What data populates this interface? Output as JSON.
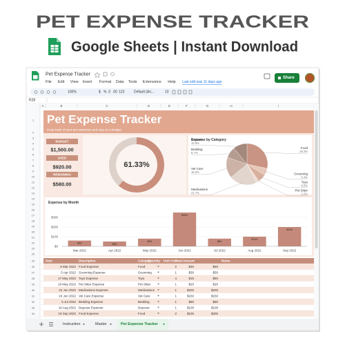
{
  "banner": {
    "title": "PET EXPENSE TRACKER",
    "subtitle": "Google Sheets | Instant Download"
  },
  "app": {
    "doc_title": "Pet Expense Tracker",
    "menus": [
      "File",
      "Edit",
      "View",
      "Insert",
      "Format",
      "Data",
      "Tools",
      "Extensions",
      "Help"
    ],
    "last_edit": "Last edit was 11 days ago",
    "share": "Share",
    "toolbar": [
      "100%",
      "$",
      "%",
      ".0",
      ".00",
      "123",
      "Default (Ari...",
      "10"
    ],
    "cell_ref": "R28",
    "columns": [
      "A",
      "B",
      "C",
      "D",
      "E",
      "F",
      "G",
      "H",
      "I"
    ],
    "rows": [
      1,
      2,
      3,
      4,
      5,
      6,
      7,
      8,
      9,
      10,
      11,
      12,
      13,
      14,
      15,
      16,
      17,
      18,
      19,
      20,
      21,
      22,
      23,
      24,
      25,
      26,
      27,
      28,
      29,
      30,
      31,
      32,
      33,
      34,
      35
    ],
    "tabs": [
      "Instruction",
      "Master",
      "Pet Expense Tracker"
    ]
  },
  "dashboard": {
    "title": "Pet Expense Tracker",
    "subtitle": "Keep track of your pet expenses and stay on a budget",
    "cards": [
      {
        "label": "BUDGET",
        "value": "$1,500.00"
      },
      {
        "label": "USED",
        "value": "$920.00"
      },
      {
        "label": "REMAINING",
        "value": "$580.00"
      }
    ]
  },
  "chart_data": [
    {
      "type": "donut",
      "values": [
        61.33,
        38.67
      ],
      "colors": [
        "#c98f7c",
        "#ddd1ca"
      ],
      "center_label": "61.33%"
    },
    {
      "type": "pie",
      "title": "Expense by Category",
      "categories": [
        "Food",
        "Grooming",
        "Toys",
        "Pet Sitter",
        "Medications",
        "Vet Care",
        "Bedding",
        "Daycare"
      ],
      "values": [
        28.3,
        5.4,
        6.5,
        2.2,
        21.7,
        16.3,
        8.7,
        10.9
      ],
      "value_labels": [
        "28.3%",
        "5.4%",
        "6.5%",
        "2.2%",
        "21.7%",
        "16.3%",
        "8.7%",
        "10.9%"
      ],
      "colors": [
        "#c99484",
        "#e7c7b8",
        "#d8b09e",
        "#efdcd2",
        "#e2d5cd",
        "#cdb3a7",
        "#b59c90",
        "#a5887c"
      ]
    },
    {
      "type": "bar",
      "title": "Expense by Month",
      "categories": [
        "Mar 2022",
        "Apr 2022",
        "May 2022",
        "Jun 2022",
        "Jul 2022",
        "Aug 2022",
        "Sep 2022"
      ],
      "values": [
        60,
        50,
        80,
        350,
        80,
        100,
        200
      ],
      "value_labels": [
        "$60",
        "$50",
        "$80",
        "$350",
        "$80",
        "$100",
        "$200"
      ],
      "color": "#c4897a",
      "ylim": [
        0,
        400
      ],
      "yticks": [
        {
          "value": 0,
          "label": "$0"
        },
        {
          "value": 100,
          "label": "$100"
        },
        {
          "value": 200,
          "label": "$200"
        },
        {
          "value": 300,
          "label": "$300"
        }
      ],
      "grid": true
    }
  ],
  "table": {
    "headers": [
      "Date",
      "Description",
      "Category",
      "Quantity",
      "Unit Cost",
      "Total Amount",
      "Notes"
    ],
    "rows": [
      [
        "6 Mar 2022",
        "Food Expense",
        "Food",
        2,
        "$30",
        "$60"
      ],
      [
        "5 Apr 2022",
        "Grooming Expense",
        "Grooming",
        1,
        "$50",
        "$50"
      ],
      [
        "17 May 2022",
        "Toys Expense",
        "Toys",
        4,
        "$15",
        "$60"
      ],
      [
        "19 May 2022",
        "Pet Sitter Expense",
        "Pet Sitter",
        1,
        "$20",
        "$20"
      ],
      [
        "22 Jun 2022",
        "Medications Expense",
        "Medications",
        1,
        "$200",
        "$200"
      ],
      [
        "24 Jun 2022",
        "Vet Care Expense",
        "Vet Care",
        1,
        "$150",
        "$150"
      ],
      [
        "5 Jul 2022",
        "Bedding Expense",
        "Bedding",
        1,
        "$80",
        "$80"
      ],
      [
        "16 Aug 2022",
        "Daycare Expense",
        "Daycare",
        1,
        "$100",
        "$100"
      ],
      [
        "18 Sep 2022",
        "Food Expense",
        "Food",
        2,
        "$100",
        "$200"
      ]
    ]
  }
}
